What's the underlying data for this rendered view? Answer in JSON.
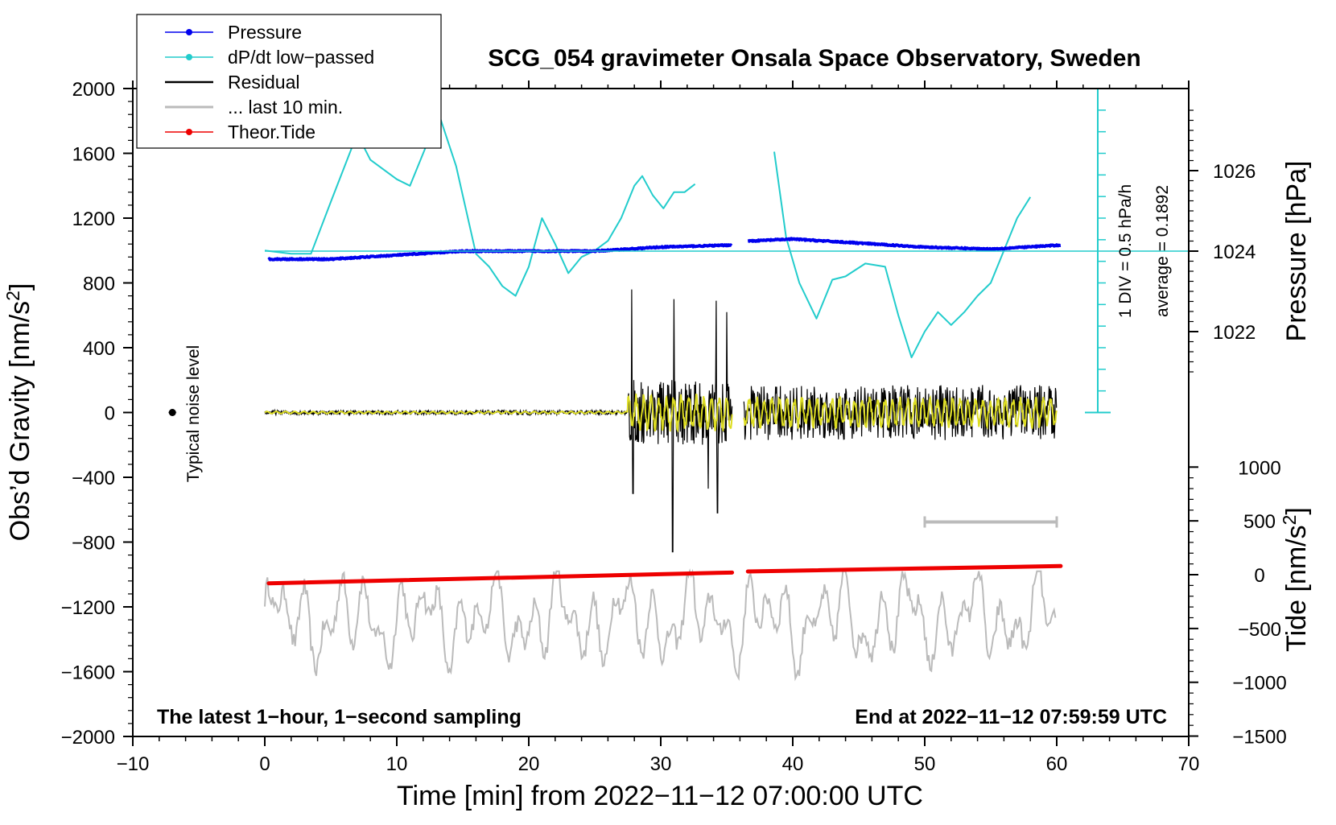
{
  "chart_data": {
    "type": "line",
    "title": "SCG_054 gravimeter Onsala Space Observatory, Sweden",
    "xlabel": "Time [min] from 2022−11−12 07:00:00 UTC",
    "xlim": [
      -10,
      70
    ],
    "x_ticks": [
      "−10",
      "0",
      "10",
      "20",
      "30",
      "40",
      "50",
      "60",
      "70"
    ],
    "y_left": {
      "label": "Obs'd Gravity [nm/s2]",
      "label_main": "Obs’d Gravity [nm/s",
      "label_sup": "2",
      "label_close": "]",
      "range": [
        -2000,
        2000
      ],
      "ticks": [
        "2000",
        "1600",
        "1200",
        "800",
        "400",
        "0",
        "−400",
        "−800",
        "−1200",
        "−1600",
        "−2000"
      ]
    },
    "y_right_pressure": {
      "label": "Pressure [hPa]",
      "ticks": [
        "1026",
        "1024",
        "1022"
      ],
      "tick_values": [
        1026,
        1024,
        1022
      ]
    },
    "y_right_tide": {
      "label": "Tide [nm/s2]",
      "label_main": "Tide [nm/s",
      "label_sup": "2",
      "label_close": "]",
      "ticks": [
        "1000",
        "500",
        "0",
        "−500",
        "−1000",
        "−1500"
      ],
      "tick_values": [
        1000,
        500,
        0,
        -500,
        -1000,
        -1500
      ]
    },
    "legend": {
      "position": "top-left",
      "entries": [
        {
          "label": "Pressure",
          "color": "#0000ee",
          "marker": true
        },
        {
          "label": "dP/dt low−passed",
          "color": "#22cccc",
          "marker": true
        },
        {
          "label": "Residual",
          "color": "#000000",
          "marker": false
        },
        {
          "label": "... last 10 min.",
          "color": "#bbbbbb",
          "marker": false
        },
        {
          "label": "Theor.Tide",
          "color": "#ee0000",
          "marker": true
        }
      ]
    },
    "annotations": {
      "bottom_left": "The latest 1−hour, 1−second sampling",
      "bottom_right": "End at 2022−11−12 07:59:59 UTC",
      "noise_label": "Typical noise level",
      "div_label": "1 DIV = 0.5 hPa/h",
      "avg_label": "average = 0.1892"
    },
    "series": [
      {
        "name": "Pressure",
        "color": "#0000ee",
        "unit": "hPa",
        "x": [
          0.3,
          5,
          10,
          15,
          20,
          25,
          30,
          35.4,
          36.6,
          40,
          45,
          50,
          55,
          60.3
        ],
        "values": [
          1023.8,
          1023.8,
          1023.9,
          1024.0,
          1024.0,
          1024.0,
          1024.1,
          1024.15,
          1024.25,
          1024.3,
          1024.2,
          1024.1,
          1024.05,
          1024.15
        ]
      },
      {
        "name": "dP/dt low-passed",
        "color": "#22cccc",
        "unit": "nm/s2 axis",
        "segments": [
          {
            "x": [
              0,
              2,
              3.5,
              5,
              7,
              8,
              10,
              11,
              12,
              13.2,
              14.5,
              16,
              17,
              18,
              19,
              20,
              21,
              22,
              23,
              24,
              25,
              26,
              27,
              28,
              28.6,
              29.4,
              30.2,
              31,
              31.8,
              32.6
            ],
            "values": [
              1000,
              980,
              980,
              1300,
              1720,
              1560,
              1440,
              1400,
              1600,
              1840,
              1520,
              980,
              900,
              780,
              720,
              900,
              1200,
              1040,
              860,
              960,
              1000,
              1060,
              1200,
              1400,
              1460,
              1340,
              1260,
              1360,
              1360,
              1410
            ]
          },
          {
            "x": [
              38.6,
              39.5,
              40.5,
              41.8,
              43,
              44,
              45.5,
              47,
              48,
              49,
              50,
              51,
              52,
              53,
              54,
              55,
              56,
              57,
              58
            ],
            "values": [
              1610,
              1080,
              800,
              580,
              820,
              840,
              920,
              900,
              600,
              340,
              500,
              620,
              540,
              620,
              720,
              800,
              1000,
              1200,
              1330
            ]
          }
        ]
      },
      {
        "name": "Residual",
        "color": "#000000",
        "x_range": [
          0,
          60
        ],
        "gap": [
          35.4,
          36.3
        ],
        "spike_values": [
          760,
          -500,
          700,
          -860,
          690,
          -620,
          620,
          -470
        ]
      },
      {
        "name": "... last 10 min.",
        "color": "#bbbbbb",
        "x_range": [
          0,
          60
        ],
        "values_range": [
          -1640,
          -980
        ]
      },
      {
        "name": "Theor.Tide",
        "color": "#ee0000",
        "unit": "nm/s2",
        "x": [
          0.3,
          35.4,
          36.6,
          60.3
        ],
        "values": [
          -80,
          20,
          30,
          80
        ]
      }
    ],
    "noise_level": {
      "x": -7,
      "y": 0
    },
    "div_scale_ticks": 15,
    "last10_bar": {
      "x": [
        50,
        60
      ],
      "tide_value": 490
    }
  }
}
